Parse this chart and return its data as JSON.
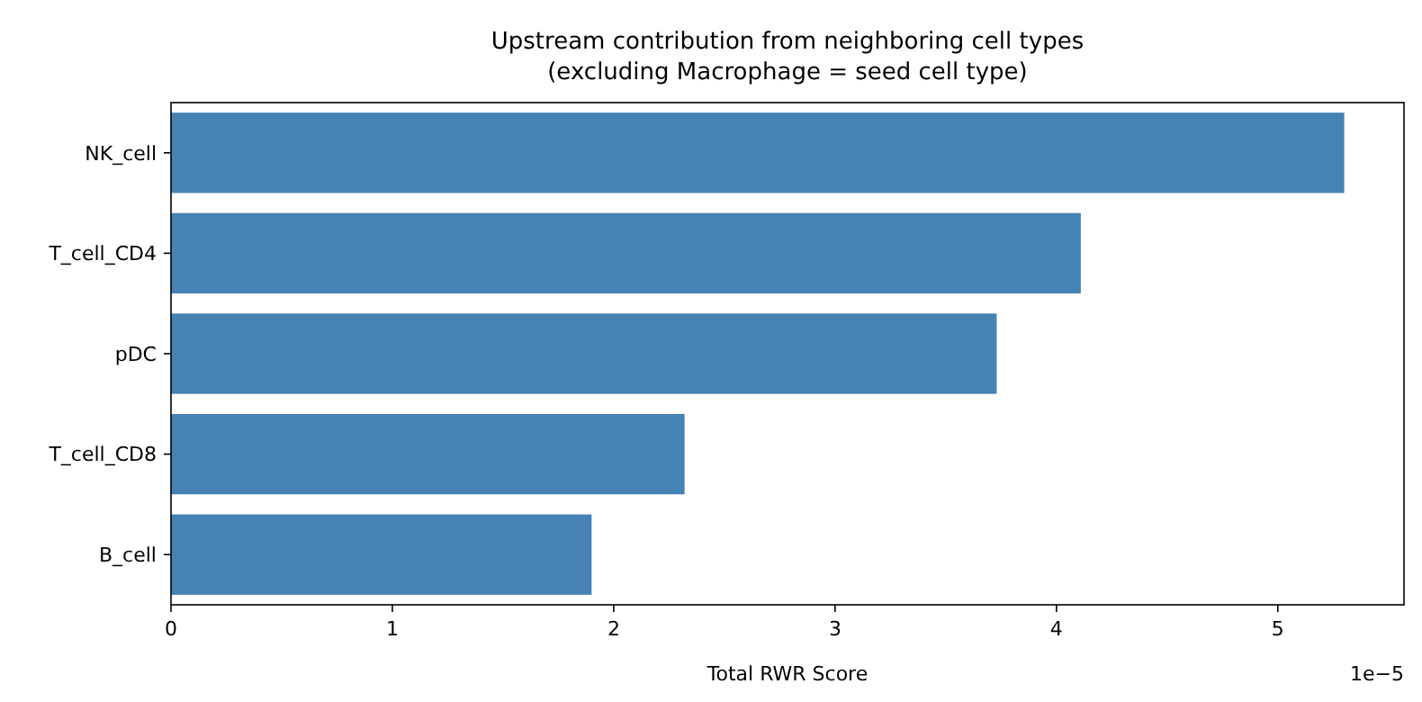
{
  "chart_data": {
    "type": "bar",
    "orientation": "horizontal",
    "title": "Upstream contribution from neighboring cell types\n(excluding Macrophage = seed cell type)",
    "xlabel": "Total RWR Score",
    "categories": [
      "NK_cell",
      "T_cell_CD4",
      "pDC",
      "T_cell_CD8",
      "B_cell"
    ],
    "values": [
      5.3,
      4.11,
      3.73,
      2.32,
      1.9
    ],
    "color": "#4682b4",
    "xlim": [
      0,
      5.57
    ],
    "xticks": [
      0,
      1,
      2,
      3,
      4,
      5
    ],
    "annotations": [
      "1e−5"
    ],
    "grid": false
  }
}
